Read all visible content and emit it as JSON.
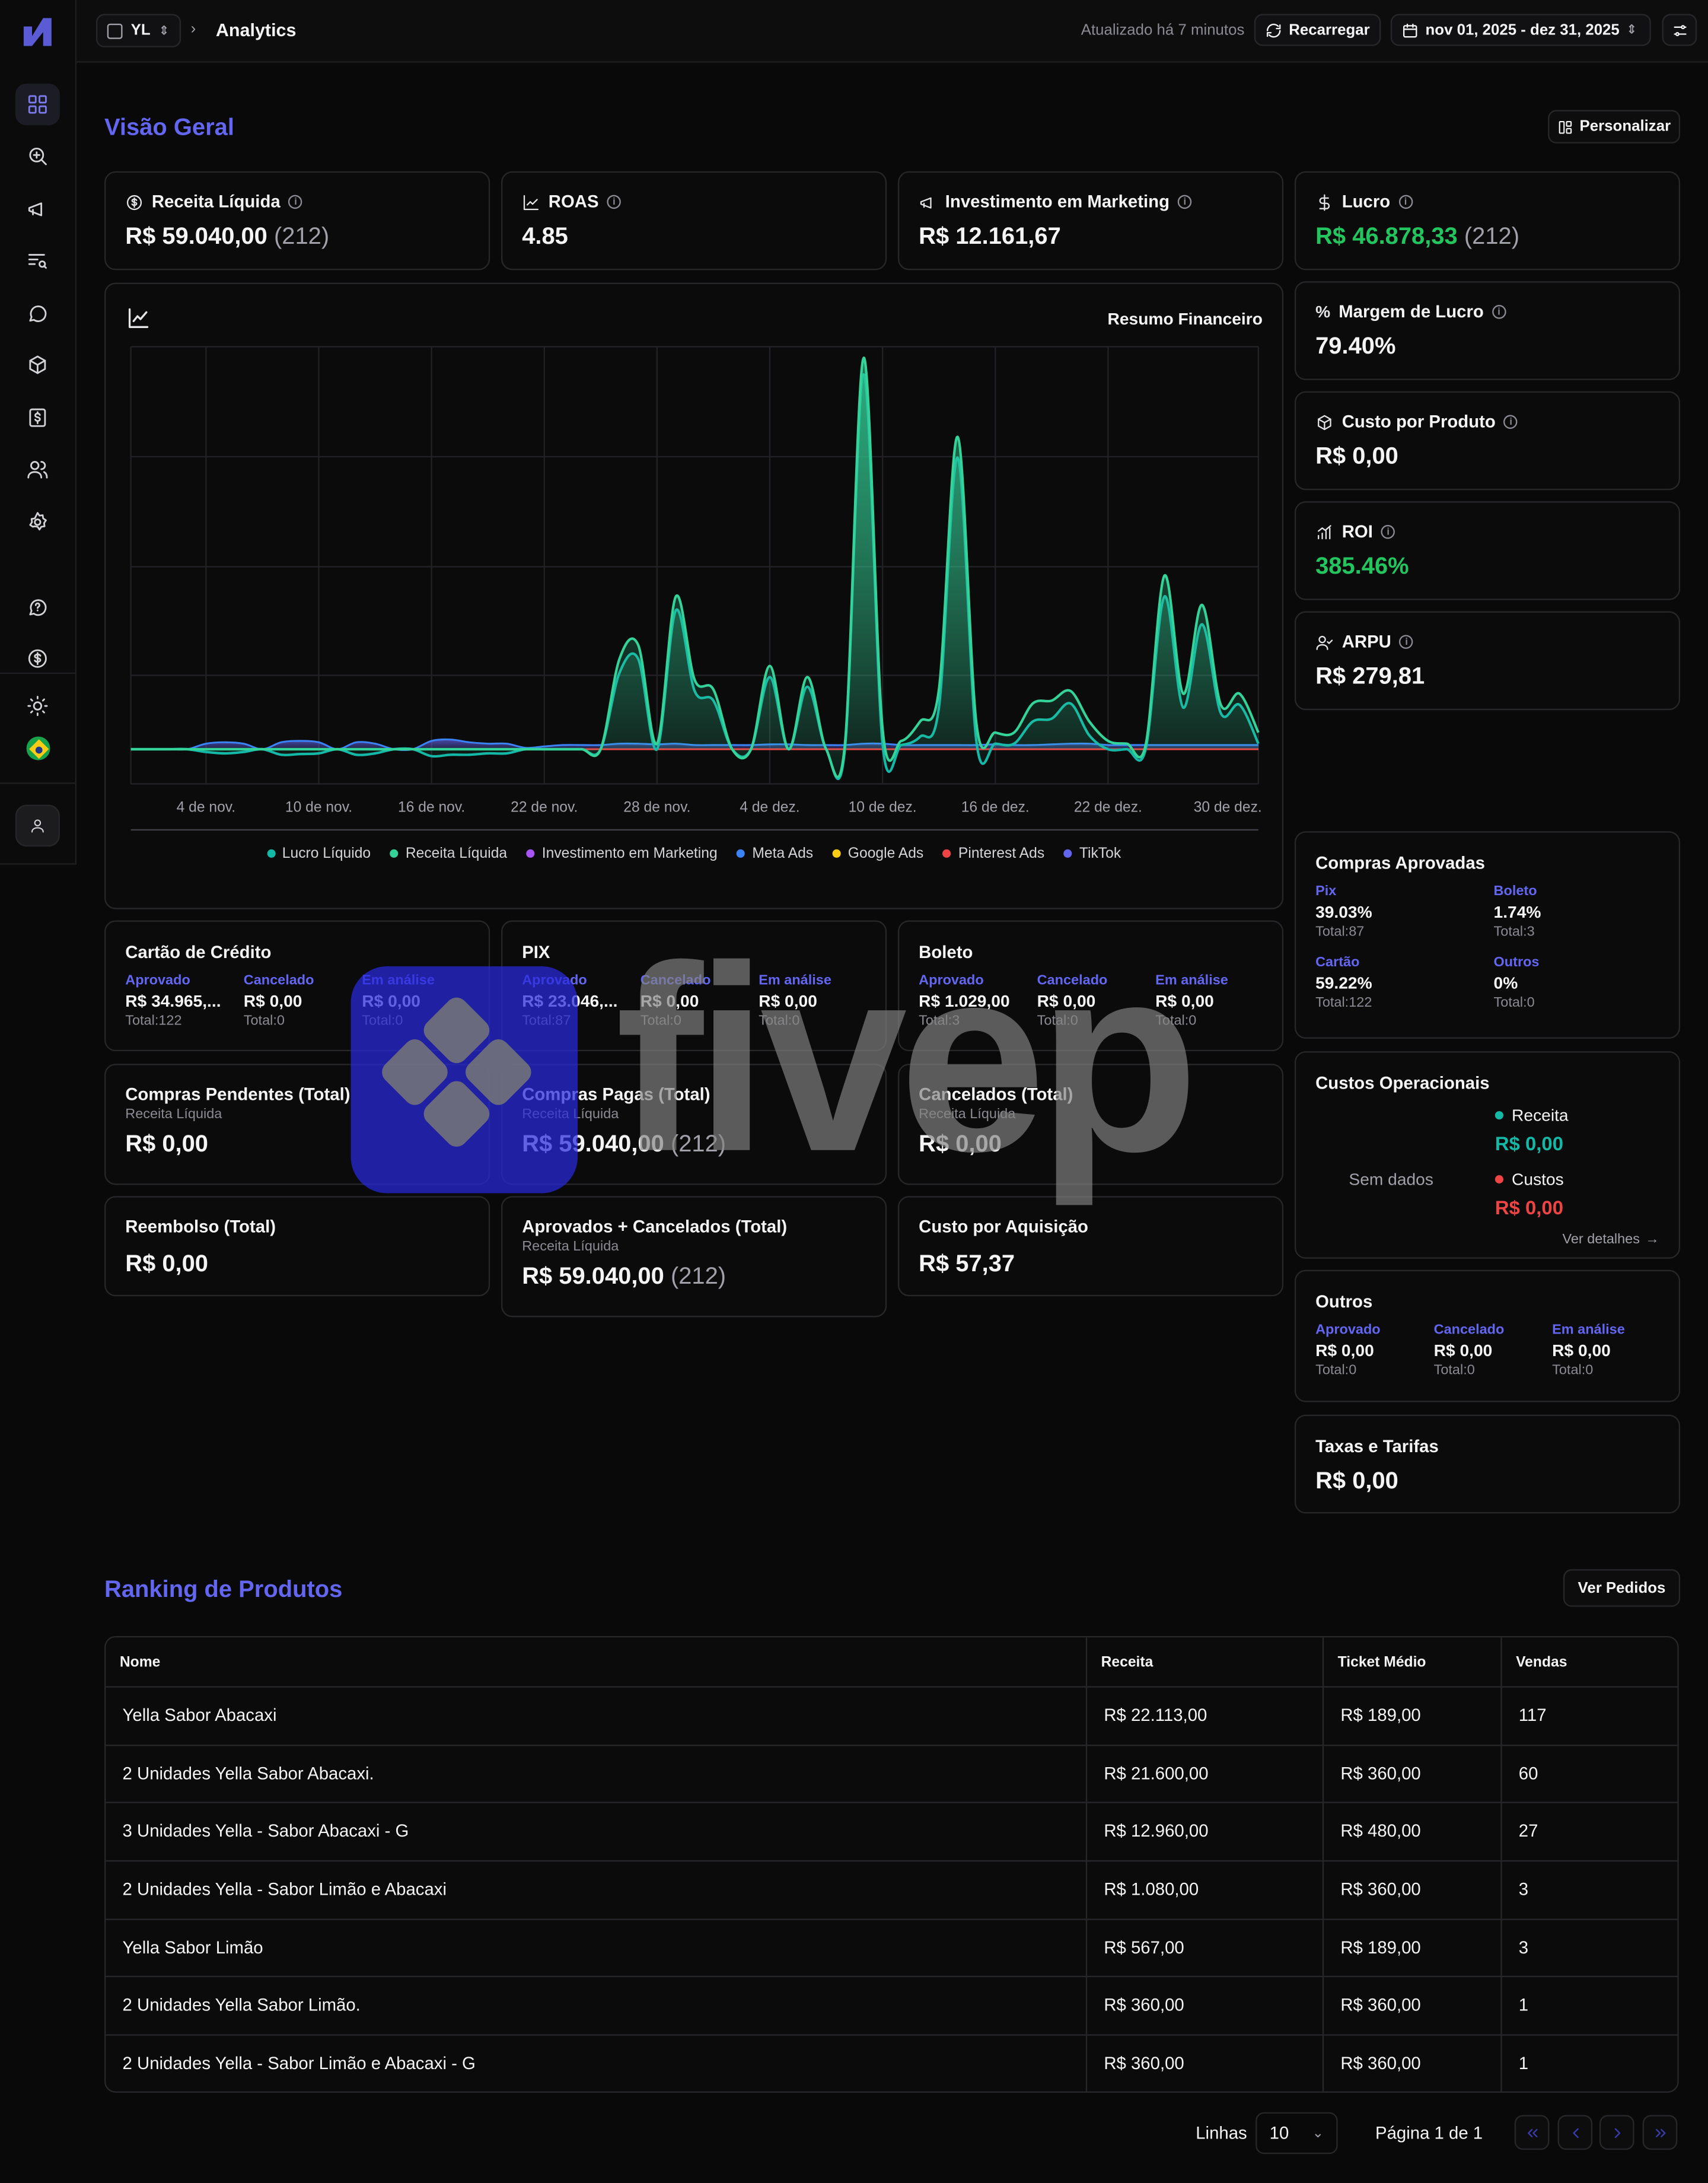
{
  "topbar": {
    "workspace": "YL",
    "breadcrumb": "Analytics",
    "updated": "Atualizado há 7 minutos",
    "reload_label": "Recarregar",
    "date_range": "nov 01, 2025 - dez 31, 2025"
  },
  "overview": {
    "title": "Visão Geral",
    "customize_label": "Personalizar"
  },
  "kpis": {
    "receita": {
      "label": "Receita Líquida",
      "value": "R$ 59.040,00",
      "count": "(212)"
    },
    "roas": {
      "label": "ROAS",
      "value": "4.85"
    },
    "investimento": {
      "label": "Investimento em Marketing",
      "value": "R$ 12.161,67"
    },
    "lucro": {
      "label": "Lucro",
      "value": "R$ 46.878,33",
      "count": "(212)"
    },
    "margem": {
      "label": "Margem de Lucro",
      "value": "79.40%"
    },
    "custo_produto": {
      "label": "Custo por Produto",
      "value": "R$ 0,00"
    },
    "roi": {
      "label": "ROI",
      "value": "385.46%"
    },
    "arpu": {
      "label": "ARPU",
      "value": "R$ 279,81"
    }
  },
  "chart_title": "Resumo Financeiro",
  "chart_data": {
    "type": "area",
    "title": "Resumo Financeiro",
    "x_ticks": [
      "4 de nov.",
      "10 de nov.",
      "16 de nov.",
      "22 de nov.",
      "28 de nov.",
      "4 de dez.",
      "10 de dez.",
      "16 de dez.",
      "22 de dez.",
      "30 de dez."
    ],
    "x": [
      "1 nov",
      "2 nov",
      "3 nov",
      "4 nov",
      "5 nov",
      "6 nov",
      "7 nov",
      "8 nov",
      "9 nov",
      "10 nov",
      "11 nov",
      "12 nov",
      "13 nov",
      "14 nov",
      "15 nov",
      "16 nov",
      "17 nov",
      "18 nov",
      "19 nov",
      "20 nov",
      "21 nov",
      "22 nov",
      "23 nov",
      "24 nov",
      "25 nov",
      "26 nov",
      "27 nov",
      "28 nov",
      "29 nov",
      "30 nov",
      "1 dez",
      "2 dez",
      "3 dez",
      "4 dez",
      "5 dez",
      "6 dez",
      "7 dez",
      "8 dez",
      "9 dez",
      "10 dez",
      "11 dez",
      "12 dez",
      "13 dez",
      "14 dez",
      "15 dez",
      "16 dez",
      "17 dez",
      "18 dez",
      "19 dez",
      "20 dez",
      "21 dez",
      "22 dez",
      "23 dez",
      "24 dez",
      "25 dez",
      "26 dez",
      "27 dez",
      "28 dez",
      "29 dez",
      "30 dez",
      "31 dez"
    ],
    "series": [
      {
        "name": "Lucro Líquido",
        "color": "#14b8a6",
        "values": [
          0,
          0,
          0,
          0,
          -20,
          -30,
          -20,
          0,
          -40,
          -35,
          -30,
          0,
          -40,
          -30,
          0,
          0,
          -50,
          -40,
          -40,
          -30,
          -30,
          0,
          0,
          0,
          0,
          0,
          550,
          650,
          0,
          1000,
          420,
          350,
          0,
          0,
          520,
          0,
          450,
          0,
          5,
          2700,
          40,
          30,
          90,
          300,
          2100,
          50,
          40,
          40,
          200,
          220,
          330,
          100,
          0,
          0,
          0,
          1100,
          300,
          900,
          260,
          320,
          40
        ]
      },
      {
        "name": "Receita Líquida",
        "color": "#34d399",
        "values": [
          0,
          0,
          0,
          0,
          0,
          0,
          0,
          0,
          0,
          0,
          0,
          0,
          0,
          0,
          0,
          0,
          0,
          0,
          0,
          0,
          0,
          0,
          0,
          0,
          0,
          0,
          650,
          750,
          40,
          1100,
          500,
          430,
          0,
          0,
          600,
          0,
          520,
          0,
          40,
          2820,
          150,
          60,
          200,
          430,
          2250,
          180,
          120,
          120,
          330,
          350,
          420,
          200,
          60,
          40,
          30,
          1250,
          400,
          1040,
          320,
          400,
          120
        ]
      },
      {
        "name": "Investimento em Marketing",
        "color": "#a855f7",
        "values": [
          0,
          0,
          0,
          0,
          0,
          0,
          0,
          0,
          0,
          0,
          0,
          0,
          0,
          0,
          0,
          0,
          0,
          0,
          0,
          0,
          0,
          0,
          0,
          0,
          0,
          0,
          0,
          0,
          0,
          0,
          0,
          0,
          0,
          0,
          0,
          0,
          0,
          0,
          0,
          0,
          0,
          0,
          0,
          0,
          0,
          0,
          0,
          0,
          0,
          0,
          0,
          0,
          0,
          0,
          0,
          0,
          0,
          0,
          0,
          0,
          0
        ]
      },
      {
        "name": "Meta Ads",
        "color": "#3b82f6",
        "values": [
          0,
          0,
          0,
          0,
          40,
          50,
          40,
          0,
          50,
          60,
          50,
          0,
          50,
          40,
          0,
          0,
          60,
          70,
          50,
          40,
          40,
          10,
          20,
          30,
          30,
          30,
          40,
          40,
          35,
          40,
          30,
          30,
          30,
          30,
          35,
          35,
          30,
          30,
          30,
          40,
          40,
          30,
          30,
          30,
          30,
          30,
          35,
          30,
          30,
          35,
          40,
          40,
          30,
          30,
          30,
          30,
          30,
          30,
          30,
          30,
          30
        ]
      },
      {
        "name": "Google Ads",
        "color": "#facc15",
        "values": [
          0,
          0,
          0,
          0,
          0,
          0,
          0,
          0,
          0,
          0,
          0,
          0,
          0,
          0,
          0,
          0,
          0,
          0,
          0,
          0,
          0,
          0,
          0,
          0,
          0,
          0,
          0,
          0,
          0,
          0,
          0,
          0,
          0,
          0,
          0,
          0,
          0,
          0,
          0,
          0,
          0,
          0,
          0,
          0,
          0,
          0,
          0,
          0,
          0,
          0,
          0,
          0,
          0,
          0,
          0,
          0,
          0,
          0,
          0,
          0,
          0
        ]
      },
      {
        "name": "Pinterest Ads",
        "color": "#ef4444",
        "values": [
          0,
          0,
          0,
          0,
          0,
          0,
          0,
          0,
          0,
          0,
          0,
          0,
          0,
          0,
          0,
          0,
          0,
          0,
          0,
          0,
          0,
          0,
          0,
          0,
          0,
          0,
          0,
          0,
          0,
          0,
          0,
          0,
          0,
          0,
          0,
          0,
          0,
          0,
          0,
          0,
          0,
          0,
          0,
          0,
          0,
          0,
          0,
          0,
          0,
          0,
          0,
          0,
          0,
          0,
          0,
          0,
          0,
          0,
          0,
          0,
          0
        ]
      },
      {
        "name": "TikTok",
        "color": "#6366f1",
        "values": [
          0,
          0,
          0,
          0,
          0,
          0,
          0,
          0,
          0,
          0,
          0,
          0,
          0,
          0,
          0,
          0,
          0,
          0,
          0,
          0,
          0,
          0,
          0,
          0,
          0,
          0,
          0,
          0,
          0,
          0,
          0,
          0,
          0,
          0,
          0,
          0,
          0,
          0,
          0,
          0,
          0,
          0,
          0,
          0,
          0,
          0,
          0,
          0,
          0,
          0,
          0,
          0,
          0,
          0,
          0,
          0,
          0,
          0,
          0,
          0,
          0
        ]
      }
    ],
    "grid": true,
    "legend_position": "bottom"
  },
  "payments": {
    "cartao": {
      "title": "Cartão de Crédito",
      "approved": "R$ 34.965,...",
      "cancelled": "R$ 0,00",
      "review": "R$ 0,00",
      "approved_total": "Total:122",
      "cancelled_total": "Total:0",
      "review_total": "Total:0"
    },
    "pix": {
      "title": "PIX",
      "approved": "R$ 23.046,...",
      "cancelled": "R$ 0,00",
      "review": "R$ 0,00",
      "approved_total": "Total:87",
      "cancelled_total": "Total:0",
      "review_total": "Total:0"
    },
    "boleto": {
      "title": "Boleto",
      "approved": "R$ 1.029,00",
      "cancelled": "R$ 0,00",
      "review": "R$ 0,00",
      "approved_total": "Total:3",
      "cancelled_total": "Total:0",
      "review_total": "Total:0"
    },
    "outros": {
      "title": "Outros",
      "approved": "R$ 0,00",
      "cancelled": "R$ 0,00",
      "review": "R$ 0,00",
      "approved_total": "Total:0",
      "cancelled_total": "Total:0",
      "review_total": "Total:0"
    },
    "labels": {
      "approved": "Aprovado",
      "cancelled": "Cancelado",
      "review": "Em análise"
    }
  },
  "summaries": {
    "pendentes": {
      "title": "Compras Pendentes (Total)",
      "sub": "Receita Líquida",
      "value": "R$ 0,00"
    },
    "pagas": {
      "title": "Compras Pagas (Total)",
      "sub": "Receita Líquida",
      "value": "R$ 59.040,00",
      "count": "(212)"
    },
    "cancelados": {
      "title": "Cancelados (Total)",
      "sub": "Receita Líquida",
      "value": "R$ 0,00"
    },
    "reembolso": {
      "title": "Reembolso (Total)",
      "value": "R$ 0,00"
    },
    "aprov_canc": {
      "title": "Aprovados + Cancelados (Total)",
      "sub": "Receita Líquida",
      "value": "R$ 59.040,00",
      "count": "(212)"
    },
    "cac": {
      "title": "Custo por Aquisição",
      "value": "R$ 57,37"
    }
  },
  "approved_purchases": {
    "title": "Compras Aprovadas",
    "items": [
      {
        "label": "Pix",
        "pct": "39.03%",
        "total": "Total:87"
      },
      {
        "label": "Boleto",
        "pct": "1.74%",
        "total": "Total:3"
      },
      {
        "label": "Cartão",
        "pct": "59.22%",
        "total": "Total:122"
      },
      {
        "label": "Outros",
        "pct": "0%",
        "total": "Total:0"
      }
    ]
  },
  "op_costs": {
    "title": "Custos Operacionais",
    "no_data": "Sem dados",
    "revenue_label": "Receita",
    "revenue_value": "R$ 0,00",
    "costs_label": "Custos",
    "costs_value": "R$ 0,00",
    "details_link": "Ver detalhes"
  },
  "fees": {
    "title": "Taxas e Tarifas",
    "value": "R$ 0,00"
  },
  "ranking": {
    "title": "Ranking de Produtos",
    "orders_button": "Ver Pedidos",
    "columns": [
      "Nome",
      "Receita",
      "Ticket Médio",
      "Vendas"
    ],
    "rows": [
      [
        "Yella Sabor Abacaxi",
        "R$ 22.113,00",
        "R$ 189,00",
        "117"
      ],
      [
        "2 Unidades Yella Sabor Abacaxi.",
        "R$ 21.600,00",
        "R$ 360,00",
        "60"
      ],
      [
        "3 Unidades Yella - Sabor Abacaxi - G",
        "R$ 12.960,00",
        "R$ 480,00",
        "27"
      ],
      [
        "2 Unidades Yella - Sabor Limão e Abacaxi",
        "R$ 1.080,00",
        "R$ 360,00",
        "3"
      ],
      [
        "Yella Sabor Limão",
        "R$ 567,00",
        "R$ 189,00",
        "3"
      ],
      [
        "2 Unidades Yella Sabor Limão.",
        "R$ 360,00",
        "R$ 360,00",
        "1"
      ],
      [
        "2 Unidades Yella - Sabor Limão e Abacaxi - G",
        "R$ 360,00",
        "R$ 360,00",
        "1"
      ]
    ]
  },
  "pagination": {
    "rows_label": "Linhas",
    "rows_value": "10",
    "page_label": "Página 1 de 1"
  },
  "watermark": {
    "text": "fivep"
  }
}
